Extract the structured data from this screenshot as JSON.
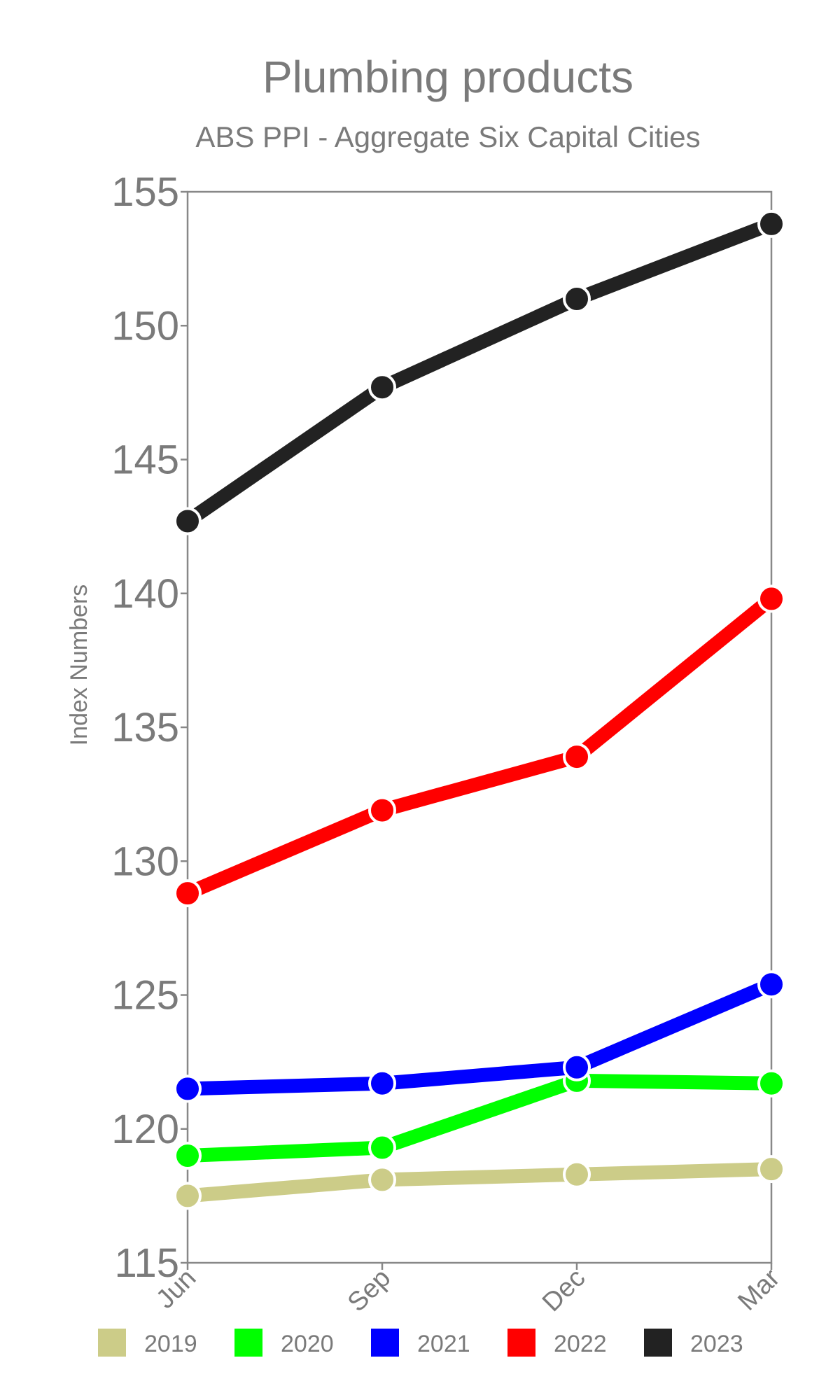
{
  "chart_data": {
    "type": "line",
    "title": "Plumbing products",
    "subtitle": "ABS PPI - Aggregate Six Capital Cities",
    "ylabel": "Index Numbers",
    "xlabel": "",
    "categories": [
      "Jun",
      "Sep",
      "Dec",
      "Mar"
    ],
    "ylim": [
      115,
      155
    ],
    "yticks": [
      115,
      120,
      125,
      130,
      135,
      140,
      145,
      150,
      155
    ],
    "grid": false,
    "legend_position": "bottom",
    "series": [
      {
        "name": "2019",
        "color": "#cccc88",
        "values": [
          117.5,
          118.1,
          118.3,
          118.5
        ]
      },
      {
        "name": "2020",
        "color": "#00ff00",
        "values": [
          119.0,
          119.3,
          121.8,
          121.7
        ]
      },
      {
        "name": "2021",
        "color": "#0000ff",
        "values": [
          121.5,
          121.7,
          122.3,
          125.4
        ]
      },
      {
        "name": "2022",
        "color": "#ff0000",
        "values": [
          128.8,
          131.9,
          133.9,
          139.8
        ]
      },
      {
        "name": "2023",
        "color": "#222222",
        "values": [
          142.7,
          147.7,
          151.0,
          153.8
        ]
      }
    ]
  }
}
